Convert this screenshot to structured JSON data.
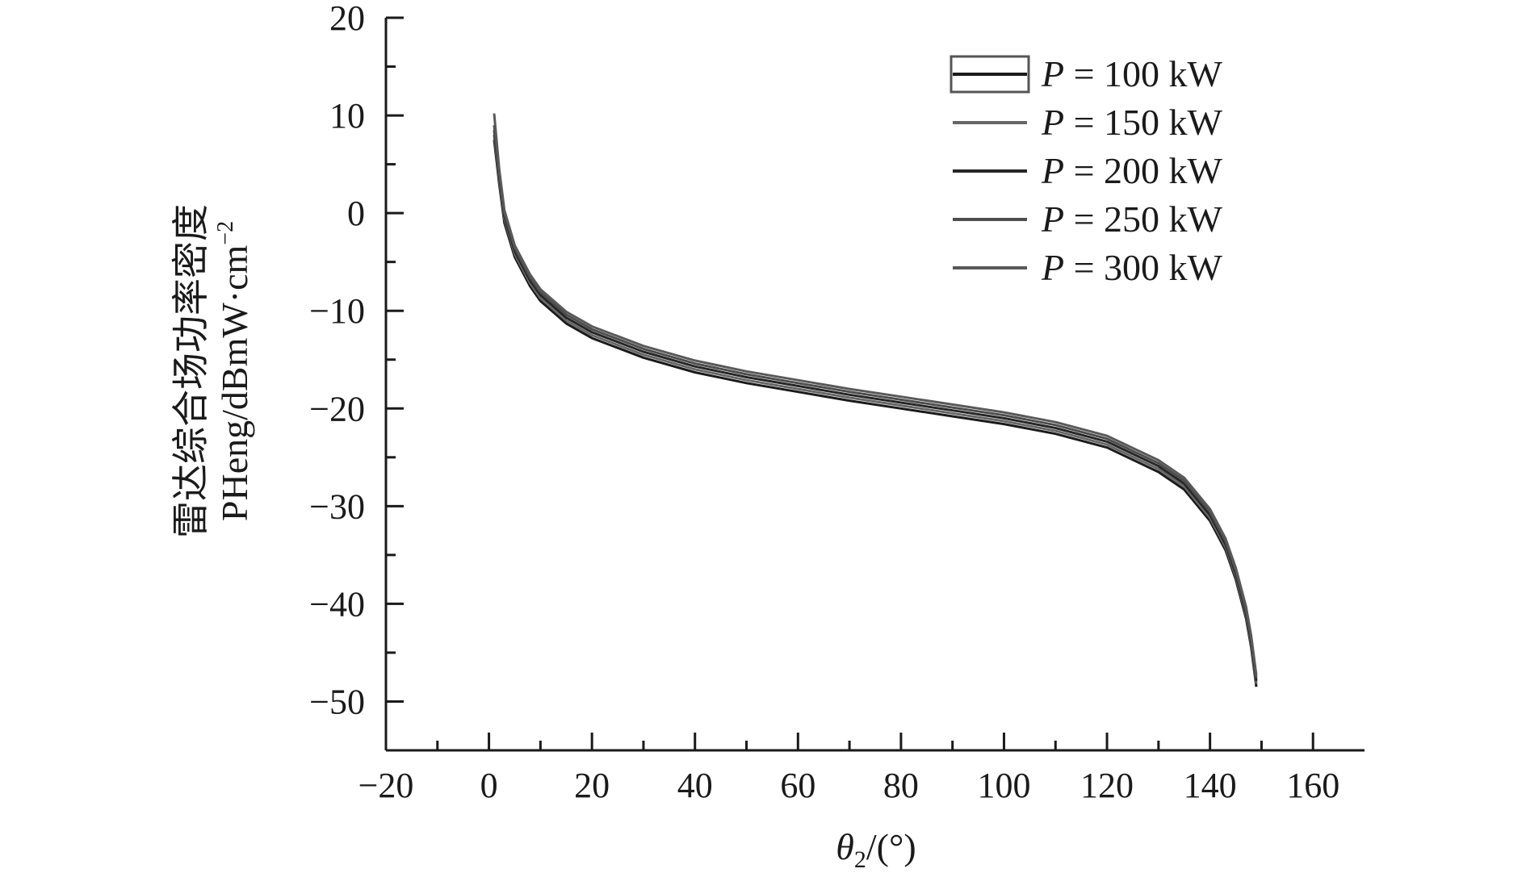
{
  "chart_data": {
    "type": "line",
    "xlabel": {
      "symbol": "θ",
      "subscript": "2",
      "unit": "/(°)"
    },
    "ylabel": {
      "line1": "雷达综合场功率密度",
      "line2_main": "PHeng/dBmW·cm",
      "line2_sup": "−2"
    },
    "xlim": [
      -20,
      170
    ],
    "ylim": [
      -55,
      20
    ],
    "xticks": [
      -20,
      0,
      20,
      40,
      60,
      80,
      100,
      120,
      140,
      160
    ],
    "xtick_labels": [
      "−20",
      "0",
      "20",
      "40",
      "60",
      "80",
      "100",
      "120",
      "140",
      "160"
    ],
    "yticks": [
      -50,
      -40,
      -30,
      -20,
      -10,
      0,
      10,
      20
    ],
    "ytick_labels": [
      "−50",
      "−40",
      "−30",
      "−20",
      "−10",
      "0",
      "10",
      "20"
    ],
    "grid": false,
    "legend_position": "top-right",
    "series": [
      {
        "name": "P = 100 kW",
        "name_italic": "P",
        "name_rest": " = 100 kW",
        "color": "#1a1a1a",
        "x": [
          1,
          2,
          3,
          5,
          8,
          10,
          15,
          20,
          30,
          40,
          50,
          60,
          70,
          80,
          90,
          100,
          110,
          120,
          130,
          135,
          140,
          143,
          145,
          147,
          148,
          149
        ],
        "y": [
          7.5,
          3,
          -1,
          -4.5,
          -7.5,
          -9,
          -11.3,
          -12.8,
          -14.8,
          -16.3,
          -17.4,
          -18.3,
          -19.2,
          -20,
          -20.8,
          -21.6,
          -22.6,
          -24,
          -26.5,
          -28.3,
          -31.5,
          -34.5,
          -37.5,
          -41.5,
          -44.5,
          -48.5
        ]
      },
      {
        "name": "P = 150 kW",
        "name_italic": "P",
        "name_rest": " = 150 kW",
        "color": "#666666",
        "x": [
          1,
          2,
          3,
          5,
          8,
          10,
          15,
          20,
          30,
          40,
          50,
          60,
          70,
          80,
          90,
          100,
          110,
          120,
          130,
          135,
          140,
          143,
          145,
          147,
          148,
          149
        ],
        "y": [
          8,
          3.4,
          -0.6,
          -4.2,
          -7.2,
          -8.7,
          -11,
          -12.5,
          -14.5,
          -16,
          -17.1,
          -18,
          -18.9,
          -19.7,
          -20.5,
          -21.3,
          -22.3,
          -23.7,
          -26.2,
          -28,
          -31.2,
          -34.2,
          -37.2,
          -41.2,
          -44.2,
          -48.2
        ]
      },
      {
        "name": "P = 200 kW",
        "name_italic": "P",
        "name_rest": " = 200 kW",
        "color": "#262626",
        "x": [
          1,
          2,
          3,
          5,
          8,
          10,
          15,
          20,
          30,
          40,
          50,
          60,
          70,
          80,
          90,
          100,
          110,
          120,
          130,
          135,
          140,
          143,
          145,
          147,
          148,
          149
        ],
        "y": [
          8.5,
          3.8,
          -0.3,
          -3.9,
          -6.9,
          -8.4,
          -10.7,
          -12.2,
          -14.2,
          -15.7,
          -16.8,
          -17.7,
          -18.6,
          -19.4,
          -20.2,
          -21,
          -22,
          -23.4,
          -25.9,
          -27.7,
          -30.9,
          -33.9,
          -36.9,
          -40.9,
          -43.9,
          -47.9
        ]
      },
      {
        "name": "P = 250 kW",
        "name_italic": "P",
        "name_rest": " = 250 kW",
        "color": "#4d4d4d",
        "x": [
          1,
          2,
          3,
          5,
          8,
          10,
          15,
          20,
          30,
          40,
          50,
          60,
          70,
          80,
          90,
          100,
          110,
          120,
          130,
          135,
          140,
          143,
          145,
          147,
          148,
          149
        ],
        "y": [
          9,
          4.1,
          0,
          -3.6,
          -6.6,
          -8.1,
          -10.4,
          -11.9,
          -13.9,
          -15.4,
          -16.5,
          -17.4,
          -18.3,
          -19.1,
          -19.9,
          -20.7,
          -21.7,
          -23.1,
          -25.6,
          -27.4,
          -30.6,
          -33.6,
          -36.6,
          -40.6,
          -43.6,
          -47.6
        ]
      },
      {
        "name": "P = 300 kW",
        "name_italic": "P",
        "name_rest": " = 300 kW",
        "color": "#595959",
        "x": [
          1,
          2,
          3,
          5,
          8,
          10,
          15,
          20,
          30,
          40,
          50,
          60,
          70,
          80,
          90,
          100,
          110,
          120,
          130,
          135,
          140,
          143,
          145,
          147,
          148,
          149
        ],
        "y": [
          10.2,
          4.5,
          0.3,
          -3.3,
          -6.3,
          -7.8,
          -10.1,
          -11.6,
          -13.6,
          -15.1,
          -16.2,
          -17.1,
          -18,
          -18.8,
          -19.6,
          -20.4,
          -21.4,
          -22.8,
          -25.3,
          -27.1,
          -30.3,
          -33.3,
          -36.3,
          -40.3,
          -43.3,
          -47.3
        ]
      }
    ]
  }
}
